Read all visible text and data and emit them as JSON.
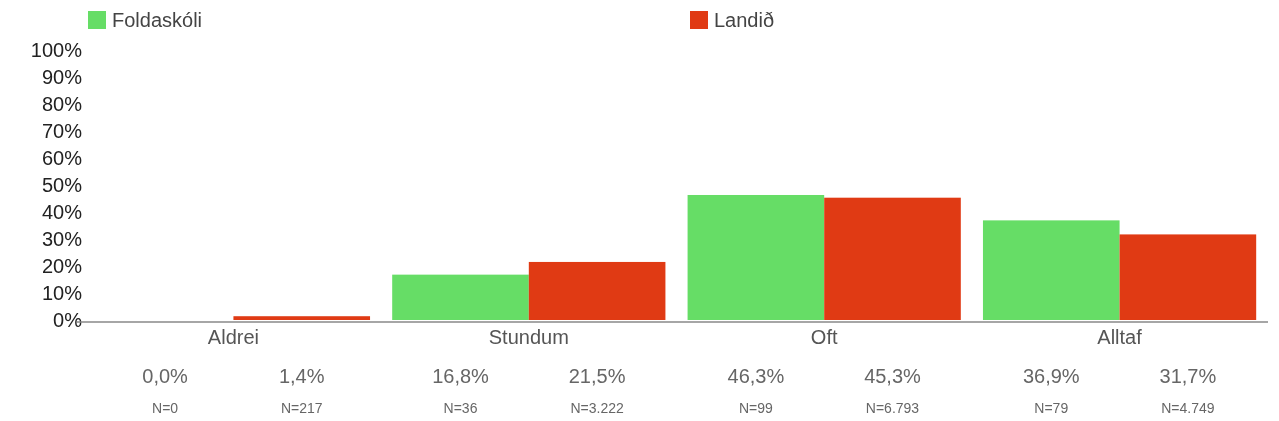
{
  "chart_data": {
    "type": "bar",
    "categories": [
      "Aldrei",
      "Stundum",
      "Oft",
      "Alltaf"
    ],
    "series": [
      {
        "name": "Foldaskóli",
        "color": "#66dd66",
        "values": [
          0,
          16.8,
          46.3,
          36.9
        ],
        "value_labels": [
          "0,0%",
          "16,8%",
          "46,3%",
          "36,9%"
        ]
      },
      {
        "name": "Landið",
        "color": "#e03a14",
        "values": [
          1.4,
          21.5,
          45.3,
          31.7
        ],
        "value_labels": [
          "1,4%",
          "21,5%",
          "45,3%",
          "31,7%"
        ]
      }
    ],
    "ylim": [
      0,
      100
    ],
    "yticks": [
      {
        "value": 0,
        "label": "0%"
      },
      {
        "value": 10,
        "label": "10%"
      },
      {
        "value": 20,
        "label": "20%"
      },
      {
        "value": 30,
        "label": "30%"
      },
      {
        "value": 40,
        "label": "40%"
      },
      {
        "value": 50,
        "label": "50%"
      },
      {
        "value": 60,
        "label": "60%"
      },
      {
        "value": 70,
        "label": "70%"
      },
      {
        "value": 80,
        "label": "80%"
      },
      {
        "value": 90,
        "label": "90%"
      },
      {
        "value": 100,
        "label": "100%"
      }
    ],
    "annotations": [
      "N=0",
      "N=217",
      "N=36",
      "N=3.222",
      "N=99",
      "N=6.793",
      "N=79",
      "N=4.749"
    ],
    "legend": "top left",
    "grid": false
  }
}
